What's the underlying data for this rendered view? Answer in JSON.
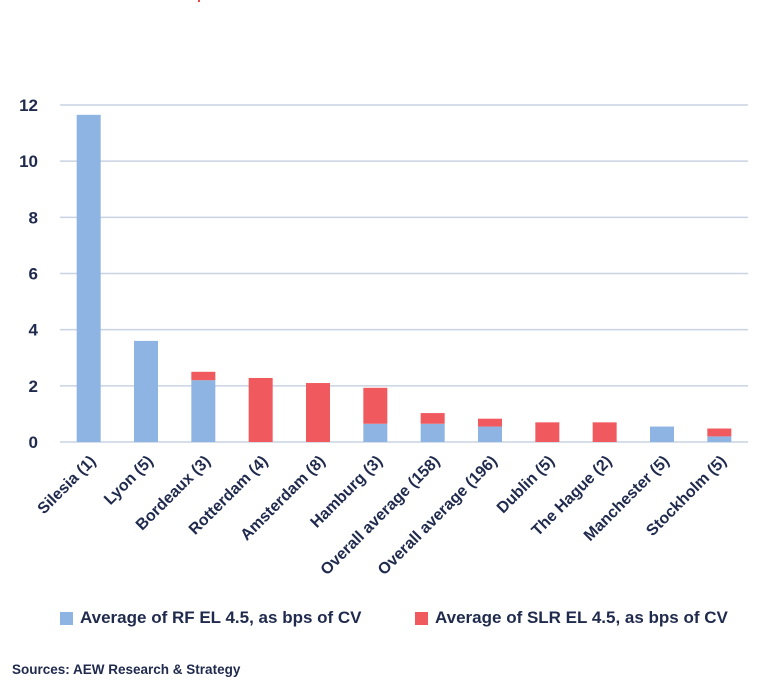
{
  "chart_data": {
    "type": "bar",
    "stacked": true,
    "categories": [
      "Silesia (1)",
      "Lyon (5)",
      "Bordeaux (3)",
      "Rotterdam (4)",
      "Amsterdam (8)",
      "Hamburg (3)",
      "Overall average (158)",
      "Overall average (196)",
      "Dublin (5)",
      "The Hague (2)",
      "Manchester (5)",
      "Stockholm (5)"
    ],
    "series": [
      {
        "name": "Average of RF EL 4.5, as bps of CV",
        "color": "#8db4e2",
        "values": [
          11.65,
          3.6,
          2.2,
          0,
          0,
          0.65,
          0.65,
          0.55,
          0,
          0,
          0.55,
          0.2
        ]
      },
      {
        "name": "Average of SLR EL 4.5, as bps of CV",
        "color": "#f05a5e",
        "values": [
          0,
          0,
          0.3,
          2.28,
          2.1,
          1.28,
          0.38,
          0.28,
          0.7,
          0.7,
          0,
          0.28
        ]
      }
    ],
    "ylim": [
      0,
      12
    ],
    "yticks": [
      0,
      2,
      4,
      6,
      8,
      10,
      12
    ],
    "grid": true,
    "legend_position": "bottom"
  },
  "source": "Sources: AEW Research & Strategy"
}
